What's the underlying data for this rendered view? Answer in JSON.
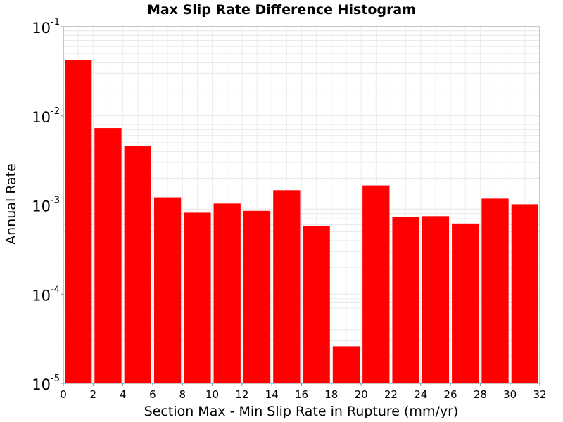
{
  "chart_data": {
    "type": "bar",
    "title": "Max Slip Rate Difference Histogram",
    "xlabel": "Section Max - Min Slip Rate in Rupture (mm/yr)",
    "ylabel": "Annual Rate",
    "y_scale": "log",
    "ylim": [
      1e-05,
      0.1
    ],
    "xlim": [
      0,
      32
    ],
    "bin_width": 2,
    "grid": true,
    "legend": "none",
    "bar_color": "#ff0000",
    "x_tick_labels": [
      "0",
      "2",
      "4",
      "6",
      "8",
      "10",
      "12",
      "14",
      "16",
      "18",
      "20",
      "22",
      "24",
      "26",
      "28",
      "30",
      "32"
    ],
    "y_tick_labels": [
      {
        "base": "10",
        "exp": "-5"
      },
      {
        "base": "10",
        "exp": "-4"
      },
      {
        "base": "10",
        "exp": "-3"
      },
      {
        "base": "10",
        "exp": "-2"
      },
      {
        "base": "10",
        "exp": "-1"
      }
    ],
    "x": [
      1,
      3,
      5,
      7,
      9,
      11,
      13,
      15,
      17,
      19,
      21,
      23,
      25,
      27,
      29,
      31
    ],
    "values": [
      0.042,
      0.0073,
      0.0046,
      0.00122,
      0.00082,
      0.00104,
      0.00086,
      0.00147,
      0.00058,
      2.6e-05,
      0.00166,
      0.00073,
      0.00075,
      0.00062,
      0.00118,
      0.00102
    ]
  }
}
